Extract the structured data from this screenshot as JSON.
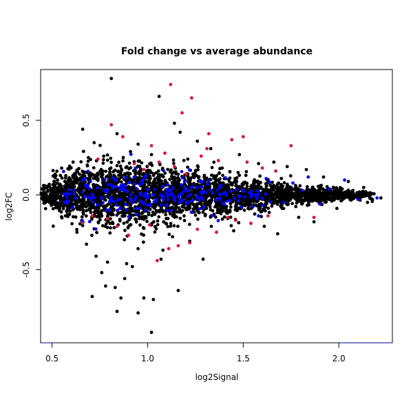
{
  "chart_data": {
    "type": "scatter",
    "title": "Fold change vs average abundance",
    "xlabel": "log2Signal",
    "ylabel": "log2FC",
    "xlim": [
      0.44,
      2.28
    ],
    "ylim": [
      -0.99,
      0.84
    ],
    "x_ticks": [
      0.5,
      1.0,
      1.5,
      2.0
    ],
    "x_tick_labels": [
      "0.5",
      "1.0",
      "1.5",
      "2.0"
    ],
    "y_ticks": [
      -0.5,
      0.0,
      0.5
    ],
    "y_tick_labels": [
      "-0.5",
      "0.0",
      "0.5"
    ],
    "grid": false,
    "legend": "none",
    "colors": {
      "background_points": "#000000",
      "highlight_red": "#dc143c",
      "highlight_blue": "#0000ff",
      "axis_line": "#00008b"
    },
    "series": [
      {
        "color": "#000000",
        "points": [
          [
            0.81,
            0.78
          ],
          [
            1.06,
            0.66
          ],
          [
            1.14,
            0.48
          ],
          [
            0.66,
            0.44
          ],
          [
            0.84,
            0.41
          ],
          [
            0.95,
            0.34
          ],
          [
            1.17,
            0.42
          ],
          [
            1.26,
            0.36
          ],
          [
            0.72,
            0.35
          ],
          [
            0.91,
            0.29
          ],
          [
            1.02,
            0.27
          ],
          [
            1.33,
            0.31
          ],
          [
            1.48,
            0.27
          ],
          [
            1.66,
            0.22
          ],
          [
            1.83,
            0.17
          ],
          [
            1.39,
            0.18
          ],
          [
            0.61,
            0.22
          ],
          [
            0.77,
            0.26
          ],
          [
            1.21,
            0.24
          ],
          [
            1.58,
            0.21
          ],
          [
            1.73,
            0.19
          ],
          [
            1.92,
            0.12
          ],
          [
            2.05,
            0.09
          ],
          [
            2.13,
            0.05
          ],
          [
            0.52,
            0.13
          ],
          [
            0.57,
            -0.14
          ],
          [
            0.63,
            -0.25
          ],
          [
            0.68,
            -0.33
          ],
          [
            0.73,
            -0.41
          ],
          [
            0.76,
            -0.52
          ],
          [
            0.79,
            -0.45
          ],
          [
            0.83,
            -0.62
          ],
          [
            0.86,
            -0.69
          ],
          [
            0.88,
            -0.56
          ],
          [
            0.92,
            -0.48
          ],
          [
            0.95,
            -0.36
          ],
          [
            0.98,
            -0.69
          ],
          [
            1.03,
            -0.7
          ],
          [
            1.07,
            -0.43
          ],
          [
            1.13,
            -0.28
          ],
          [
            1.16,
            -0.64
          ],
          [
            1.29,
            -0.43
          ],
          [
            1.45,
            -0.24
          ],
          [
            1.61,
            -0.21
          ],
          [
            1.79,
            -0.15
          ],
          [
            1.99,
            -0.09
          ],
          [
            0.84,
            -0.78
          ],
          [
            0.95,
            -0.79
          ],
          [
            1.02,
            -0.92
          ],
          [
            0.71,
            -0.68
          ],
          [
            0.78,
            -0.61
          ],
          [
            0.89,
            -0.46
          ],
          [
            1.08,
            -0.37
          ],
          [
            1.22,
            -0.31
          ],
          [
            1.68,
            -0.26
          ],
          [
            1.87,
            -0.18
          ],
          [
            2.15,
            -0.05
          ],
          [
            2.22,
            -0.02
          ],
          [
            0.55,
            0.18
          ],
          [
            0.69,
            0.25
          ]
        ],
        "cloud": [
          {
            "x": 0.48,
            "y": 0.0,
            "sd": 0.038,
            "n": 95
          },
          {
            "x": 0.55,
            "y": 0.0,
            "sd": 0.06,
            "n": 170
          },
          {
            "x": 0.62,
            "y": 0.0,
            "sd": 0.08,
            "n": 190
          },
          {
            "x": 0.7,
            "y": 0.0,
            "sd": 0.095,
            "n": 200
          },
          {
            "x": 0.78,
            "y": 0.0,
            "sd": 0.105,
            "n": 200
          },
          {
            "x": 0.86,
            "y": 0.0,
            "sd": 0.105,
            "n": 200
          },
          {
            "x": 0.94,
            "y": 0.0,
            "sd": 0.1,
            "n": 200
          },
          {
            "x": 1.02,
            "y": 0.0,
            "sd": 0.095,
            "n": 195
          },
          {
            "x": 1.1,
            "y": 0.0,
            "sd": 0.09,
            "n": 190
          },
          {
            "x": 1.18,
            "y": 0.0,
            "sd": 0.085,
            "n": 185
          },
          {
            "x": 1.26,
            "y": 0.0,
            "sd": 0.078,
            "n": 180
          },
          {
            "x": 1.34,
            "y": 0.0,
            "sd": 0.07,
            "n": 175
          },
          {
            "x": 1.42,
            "y": 0.0,
            "sd": 0.062,
            "n": 165
          },
          {
            "x": 1.5,
            "y": 0.0,
            "sd": 0.055,
            "n": 160
          },
          {
            "x": 1.58,
            "y": 0.0,
            "sd": 0.048,
            "n": 150
          },
          {
            "x": 1.66,
            "y": 0.0,
            "sd": 0.042,
            "n": 140
          },
          {
            "x": 1.74,
            "y": 0.0,
            "sd": 0.036,
            "n": 130
          },
          {
            "x": 1.82,
            "y": 0.0,
            "sd": 0.03,
            "n": 120
          },
          {
            "x": 1.9,
            "y": 0.0,
            "sd": 0.026,
            "n": 110
          },
          {
            "x": 1.98,
            "y": 0.0,
            "sd": 0.022,
            "n": 95
          },
          {
            "x": 2.06,
            "y": 0.0,
            "sd": 0.018,
            "n": 75
          },
          {
            "x": 2.14,
            "y": 0.0,
            "sd": 0.014,
            "n": 45
          }
        ]
      },
      {
        "color": "#dc143c",
        "points": [
          [
            1.12,
            0.74
          ],
          [
            1.23,
            0.65
          ],
          [
            1.18,
            0.55
          ],
          [
            0.81,
            0.47
          ],
          [
            0.87,
            0.39
          ],
          [
            1.32,
            0.41
          ],
          [
            1.5,
            0.39
          ],
          [
            1.44,
            0.37
          ],
          [
            1.75,
            0.33
          ],
          [
            1.02,
            0.33
          ],
          [
            1.31,
            0.31
          ],
          [
            1.09,
            0.28
          ],
          [
            1.37,
            0.23
          ],
          [
            1.52,
            0.22
          ],
          [
            1.28,
            0.26
          ],
          [
            0.74,
            0.24
          ],
          [
            0.93,
            0.21
          ],
          [
            1.06,
            0.22
          ],
          [
            1.6,
            0.18
          ],
          [
            1.14,
            0.19
          ],
          [
            0.98,
            0.17
          ],
          [
            1.22,
            -0.32
          ],
          [
            1.16,
            -0.34
          ],
          [
            1.11,
            -0.36
          ],
          [
            1.05,
            -0.44
          ],
          [
            0.9,
            -0.27
          ],
          [
            1.36,
            -0.25
          ],
          [
            1.46,
            -0.17
          ],
          [
            1.63,
            -0.14
          ],
          [
            1.87,
            -0.15
          ],
          [
            0.71,
            -0.14
          ],
          [
            0.66,
            -0.18
          ],
          [
            1.42,
            -0.15
          ],
          [
            0.84,
            -0.21
          ],
          [
            1.54,
            -0.19
          ],
          [
            1.26,
            -0.23
          ],
          [
            0.79,
            -0.16
          ],
          [
            1.01,
            -0.2
          ],
          [
            1.67,
            0.16
          ],
          [
            1.2,
            0.14
          ]
        ]
      },
      {
        "color": "#0000ff",
        "points": [
          [
            2.03,
            0.1
          ],
          [
            2.2,
            -0.02
          ],
          [
            1.84,
            0.12
          ],
          [
            1.76,
            0.08
          ],
          [
            1.9,
            -0.06
          ],
          [
            1.95,
            0.04
          ],
          [
            2.1,
            -0.03
          ],
          [
            1.58,
            -0.14
          ],
          [
            1.62,
            0.11
          ],
          [
            1.55,
            -0.08
          ],
          [
            1.71,
            -0.05
          ],
          [
            1.81,
            0.03
          ]
        ],
        "cloud": [
          {
            "x": 0.6,
            "y": 0.0,
            "sd": 0.07,
            "n": 14
          },
          {
            "x": 0.7,
            "y": 0.0,
            "sd": 0.075,
            "n": 22
          },
          {
            "x": 0.8,
            "y": 0.0,
            "sd": 0.075,
            "n": 26
          },
          {
            "x": 0.9,
            "y": 0.0,
            "sd": 0.072,
            "n": 28
          },
          {
            "x": 1.0,
            "y": 0.0,
            "sd": 0.07,
            "n": 28
          },
          {
            "x": 1.1,
            "y": 0.0,
            "sd": 0.068,
            "n": 26
          },
          {
            "x": 1.2,
            "y": 0.0,
            "sd": 0.065,
            "n": 26
          },
          {
            "x": 1.3,
            "y": 0.0,
            "sd": 0.06,
            "n": 22
          },
          {
            "x": 1.4,
            "y": 0.0,
            "sd": 0.055,
            "n": 18
          },
          {
            "x": 1.5,
            "y": 0.0,
            "sd": 0.05,
            "n": 14
          },
          {
            "x": 1.6,
            "y": 0.0,
            "sd": 0.045,
            "n": 10
          }
        ]
      }
    ]
  }
}
